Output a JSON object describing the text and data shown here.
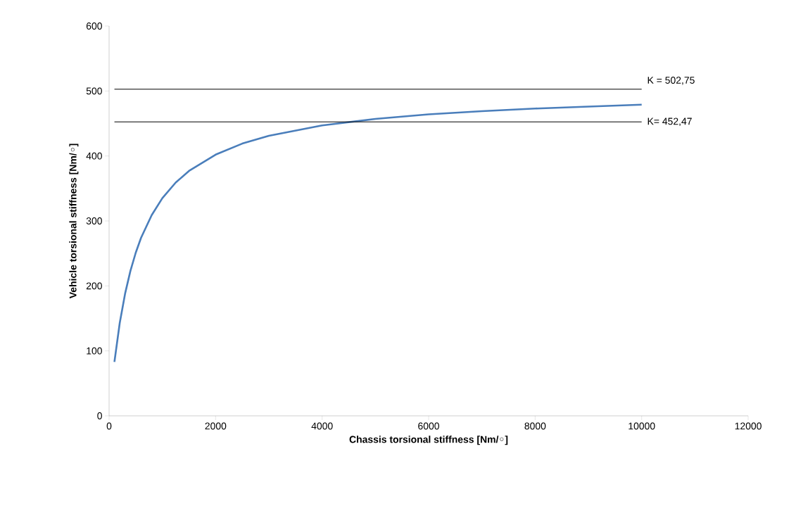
{
  "chart_data": {
    "type": "line",
    "xlabel": "Chassis torsional stiffness [Nm/◦]",
    "ylabel": "Vehicle torsional stiffness [Nm/◦]",
    "xlim": [
      0,
      12000
    ],
    "xticks": [
      0,
      2000,
      4000,
      6000,
      8000,
      10000,
      12000
    ],
    "ylim": [
      0,
      600
    ],
    "yticks": [
      0,
      100,
      200,
      300,
      400,
      500,
      600
    ],
    "series": [
      {
        "color": "#4a7ebb",
        "x": [
          100,
          200,
          300,
          400,
          500,
          600,
          800,
          1000,
          1250,
          1500,
          2000,
          2500,
          3000,
          4000,
          5000,
          6000,
          7000,
          8000,
          9000,
          10000
        ],
        "values": [
          83,
          143,
          188,
          223,
          251,
          274,
          309,
          335,
          359,
          377,
          402,
          419,
          431,
          447,
          457,
          464,
          469,
          473,
          476,
          479
        ]
      }
    ],
    "ref_lines": [
      {
        "axis": "y",
        "value": 502.75,
        "label": "K = 502,75",
        "color": "#000000"
      },
      {
        "axis": "y",
        "value": 452.47,
        "label": "K= 452,47",
        "color": "#000000"
      }
    ]
  }
}
